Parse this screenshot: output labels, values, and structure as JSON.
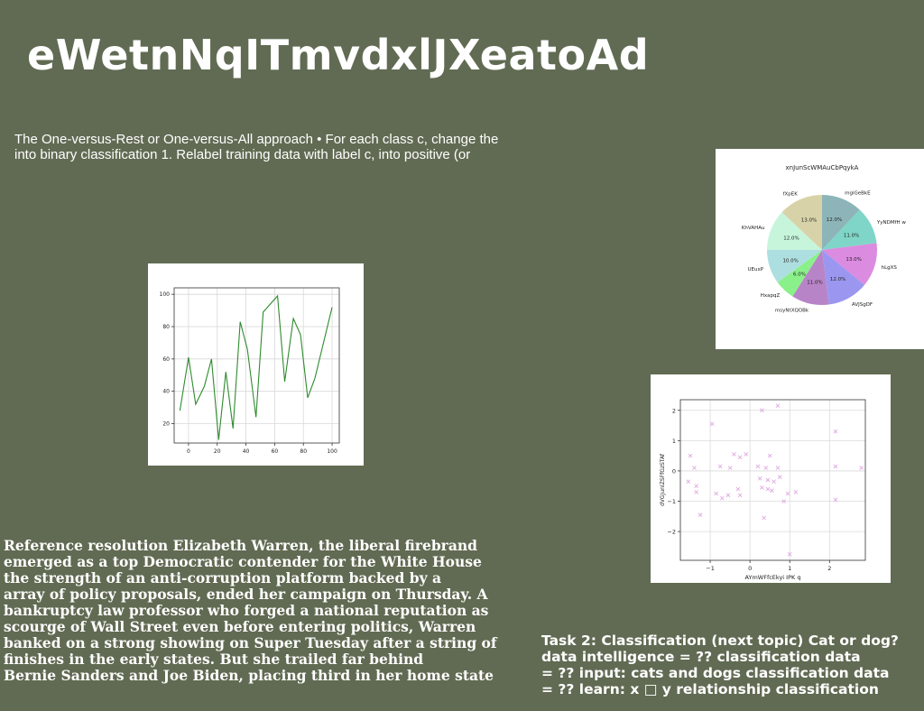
{
  "slide": {
    "title": "eWetnNqITmvdxlJXeatoAd",
    "intro_lines": [
      "The One-versus-Rest or One-versus-All approach • For each class c, change the",
      "into binary classification 1. Relabel training data with label c, into positive (or"
    ],
    "article_lines": [
      "Reference resolution Elizabeth Warren, the liberal firebrand",
      "emerged as a top Democratic contender for the White House",
      "the strength of an anti-corruption platform backed by a",
      "array of policy proposals, ended her campaign on Thursday. A",
      "bankruptcy law professor who forged a national reputation as",
      "scourge of Wall Street even before entering politics, Warren",
      "banked on a strong showing on Super Tuesday after a string of",
      "finishes in the early states. But she trailed far behind",
      "Bernie Sanders and Joe Biden, placing third in her home state"
    ],
    "task_lines": [
      "Task 2: Classification (next topic) Cat or dog?",
      "data intelligence = ?? classification data",
      "= ?? input: cats and dogs classification data",
      "= ?? learn: x □ y relationship classification"
    ],
    "colors": {
      "background": "#616b53",
      "text": "#ffffff"
    }
  },
  "chart_data": [
    {
      "type": "line",
      "title": "",
      "xlabel": "",
      "ylabel": "",
      "xlim": [
        -10,
        105
      ],
      "ylim": [
        8,
        104
      ],
      "xticks": [
        0,
        20,
        40,
        60,
        80,
        100
      ],
      "yticks": [
        20,
        40,
        60,
        80,
        100
      ],
      "grid": true,
      "color": "#2e8b2e",
      "x": [
        -6,
        0,
        5,
        11,
        16,
        21,
        26,
        31,
        36,
        41,
        47,
        52,
        62,
        67,
        73,
        78,
        83,
        88,
        100
      ],
      "y": [
        28,
        61,
        32,
        43,
        60,
        10,
        52,
        17,
        83,
        66,
        24,
        89,
        99,
        46,
        85,
        75,
        36,
        48,
        92
      ]
    },
    {
      "type": "pie",
      "title": "xnJunScWMAuCbPqykA",
      "slices": [
        {
          "label": "mgiGeBkE",
          "value": 12.0,
          "display": "12.0%",
          "color": "#8db5b9"
        },
        {
          "label": "YyNDMfH w",
          "value": 11.0,
          "display": "11.0%",
          "color": "#7fd6c8"
        },
        {
          "label": "hLgXS",
          "value": 13.0,
          "display": "13.0%",
          "color": "#db8be0"
        },
        {
          "label": "AVJSgDF",
          "value": 12.0,
          "display": "12.0%",
          "color": "#9b97f0"
        },
        {
          "label": "msyNtXQOBk",
          "value": 11.0,
          "display": "11.0%",
          "color": "#b884c8"
        },
        {
          "label": "HxapqZ",
          "value": 6.0,
          "display": "6.0%",
          "color": "#8af08a"
        },
        {
          "label": "UEuxP",
          "value": 10.0,
          "display": "10.0%",
          "color": "#aedfe0"
        },
        {
          "label": "KhVAHAu",
          "value": 12.0,
          "display": "12.0%",
          "color": "#c6f5dc"
        },
        {
          "label": "fXpEK",
          "value": 13.0,
          "display": "13.0%",
          "color": "#d8d2a8"
        }
      ]
    },
    {
      "type": "scatter",
      "title": "",
      "xlabel": "AYmWFfcEkyi IPK q",
      "ylabel": "dVGJunIZSFfGzSTAf",
      "xlim": [
        -1.75,
        2.9
      ],
      "ylim": [
        -2.95,
        2.35
      ],
      "xticks": [
        -1,
        0,
        1,
        2
      ],
      "yticks": [
        -2,
        -1,
        0,
        1,
        2
      ],
      "grid": true,
      "marker": "x",
      "color": "#e0a8e0",
      "points": [
        [
          -1.55,
          -0.35
        ],
        [
          -1.5,
          0.5
        ],
        [
          -1.4,
          0.1
        ],
        [
          -1.35,
          -0.5
        ],
        [
          -1.35,
          -0.7
        ],
        [
          -1.25,
          -1.45
        ],
        [
          -0.95,
          1.55
        ],
        [
          -0.85,
          -0.75
        ],
        [
          -0.75,
          0.15
        ],
        [
          -0.7,
          -0.9
        ],
        [
          -0.55,
          -0.8
        ],
        [
          -0.5,
          0.1
        ],
        [
          -0.4,
          0.55
        ],
        [
          -0.3,
          -0.6
        ],
        [
          -0.25,
          0.45
        ],
        [
          -0.25,
          -0.8
        ],
        [
          -0.1,
          0.55
        ],
        [
          0.2,
          0.15
        ],
        [
          0.25,
          -0.25
        ],
        [
          0.3,
          2.0
        ],
        [
          0.35,
          -1.55
        ],
        [
          0.4,
          0.1
        ],
        [
          0.45,
          -0.3
        ],
        [
          0.45,
          -0.6
        ],
        [
          0.5,
          0.5
        ],
        [
          0.55,
          -0.65
        ],
        [
          0.6,
          -0.35
        ],
        [
          0.7,
          0.1
        ],
        [
          0.75,
          -0.2
        ],
        [
          0.85,
          -1.0
        ],
        [
          0.95,
          -0.75
        ],
        [
          1.0,
          -2.75
        ],
        [
          1.15,
          -0.7
        ],
        [
          0.7,
          2.15
        ],
        [
          2.15,
          1.3
        ],
        [
          2.15,
          0.15
        ],
        [
          2.15,
          -0.95
        ],
        [
          2.8,
          0.1
        ],
        [
          0.3,
          -0.55
        ]
      ]
    }
  ]
}
